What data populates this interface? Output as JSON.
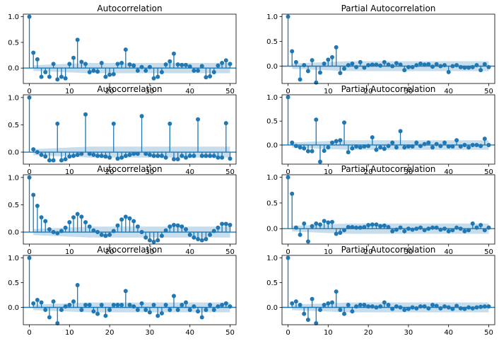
{
  "chart_data": [
    {
      "type": "stem",
      "title": "Autocorrelation",
      "xlim": [
        -1.5,
        51.5
      ],
      "ylim": [
        -0.3,
        1.05
      ],
      "xticks": [
        0,
        10,
        20,
        30,
        40,
        50
      ],
      "yticks": [
        "0.0",
        "0.5",
        "1.0"
      ],
      "confband": true,
      "values": [
        1.0,
        0.3,
        0.17,
        -0.17,
        -0.08,
        -0.17,
        0.08,
        -0.22,
        -0.17,
        -0.2,
        0.08,
        0.2,
        0.55,
        0.12,
        0.08,
        -0.08,
        -0.05,
        -0.07,
        0.1,
        -0.17,
        -0.13,
        -0.12,
        0.08,
        0.1,
        0.36,
        0.07,
        0.05,
        -0.05,
        0.02,
        -0.05,
        0.02,
        -0.2,
        -0.17,
        -0.08,
        0.07,
        0.13,
        0.28,
        0.07,
        0.06,
        0.06,
        0.03,
        -0.05,
        -0.05,
        0.04,
        -0.18,
        -0.16,
        -0.08,
        0.05,
        0.1,
        0.15,
        0.08
      ]
    },
    {
      "type": "stem",
      "title": "Partial Autocorrelation",
      "xlim": [
        -1.5,
        51.5
      ],
      "ylim": [
        -0.35,
        1.05
      ],
      "xticks": [
        0,
        10,
        20,
        30,
        40,
        50
      ],
      "yticks": [
        "0.0",
        "0.5",
        "1.0"
      ],
      "confband": true,
      "values": [
        1.0,
        0.3,
        0.08,
        -0.27,
        0.02,
        -0.1,
        0.12,
        -0.33,
        -0.13,
        0.05,
        0.13,
        0.18,
        0.38,
        -0.14,
        -0.05,
        0.02,
        0.05,
        -0.02,
        0.08,
        -0.03,
        0.02,
        0.03,
        0.03,
        0.01,
        0.08,
        0.03,
        0.0,
        0.06,
        0.03,
        -0.08,
        -0.02,
        -0.02,
        0.02,
        0.05,
        0.03,
        0.04,
        -0.01,
        0.04,
        0.0,
        0.02,
        -0.12,
        0.0,
        0.02,
        -0.02,
        -0.03,
        -0.03,
        -0.02,
        0.02,
        -0.08,
        0.04,
        -0.02
      ]
    },
    {
      "type": "stem",
      "title": "Autocorrelation",
      "xlim": [
        -1.5,
        51.5
      ],
      "ylim": [
        -0.22,
        1.05
      ],
      "xticks": [
        0,
        10,
        20,
        30,
        40,
        50
      ],
      "yticks": [
        "0.0",
        "0.5",
        "1.0"
      ],
      "confband": true,
      "values": [
        1.0,
        0.05,
        0.0,
        -0.05,
        -0.08,
        -0.15,
        -0.15,
        0.52,
        -0.15,
        -0.13,
        -0.08,
        -0.07,
        -0.05,
        -0.03,
        0.69,
        -0.03,
        -0.05,
        -0.07,
        -0.07,
        -0.08,
        -0.1,
        0.52,
        -0.12,
        -0.1,
        -0.07,
        -0.05,
        -0.03,
        -0.03,
        0.66,
        -0.03,
        -0.05,
        -0.07,
        -0.07,
        -0.07,
        -0.1,
        0.52,
        -0.13,
        -0.13,
        -0.07,
        -0.1,
        -0.07,
        -0.07,
        0.6,
        -0.07,
        -0.07,
        -0.07,
        -0.07,
        -0.1,
        -0.1,
        0.53,
        -0.12
      ]
    },
    {
      "type": "stem",
      "title": "Partial Autocorrelation",
      "xlim": [
        -1.5,
        51.5
      ],
      "ylim": [
        -0.4,
        1.05
      ],
      "xticks": [
        0,
        10,
        20,
        30,
        40,
        50
      ],
      "yticks": [
        "0.0",
        "0.5",
        "1.0"
      ],
      "confband": true,
      "values": [
        1.0,
        0.05,
        -0.02,
        -0.05,
        -0.07,
        -0.13,
        -0.13,
        0.53,
        -0.35,
        -0.12,
        -0.05,
        0.05,
        0.08,
        0.1,
        0.47,
        -0.15,
        -0.07,
        -0.03,
        -0.05,
        -0.03,
        -0.02,
        0.16,
        -0.1,
        -0.05,
        -0.08,
        -0.02,
        0.05,
        -0.05,
        0.29,
        -0.05,
        -0.03,
        -0.03,
        0.05,
        -0.02,
        0.02,
        0.05,
        -0.05,
        0.02,
        -0.02,
        0.05,
        -0.03,
        -0.03,
        0.1,
        -0.03,
        0.0,
        -0.05,
        0.0,
        0.0,
        -0.02,
        0.13,
        0.0
      ]
    },
    {
      "type": "stem",
      "title": "Autocorrelation",
      "xlim": [
        -1.5,
        51.5
      ],
      "ylim": [
        -0.22,
        1.05
      ],
      "xticks": [
        0,
        10,
        20,
        30,
        40,
        50
      ],
      "yticks": [
        "0.0",
        "0.5",
        "1.0"
      ],
      "confband": true,
      "values": [
        1.0,
        0.68,
        0.48,
        0.27,
        0.2,
        0.05,
        0.0,
        -0.02,
        0.02,
        0.08,
        0.18,
        0.27,
        0.33,
        0.28,
        0.18,
        0.1,
        0.03,
        0.0,
        -0.05,
        -0.07,
        -0.05,
        0.02,
        0.12,
        0.23,
        0.28,
        0.25,
        0.2,
        0.1,
        0.0,
        -0.1,
        -0.15,
        -0.18,
        -0.15,
        -0.07,
        0.03,
        0.1,
        0.13,
        0.12,
        0.1,
        0.05,
        -0.05,
        -0.1,
        -0.13,
        -0.15,
        -0.13,
        -0.05,
        0.02,
        0.08,
        0.15,
        0.15,
        0.13
      ]
    },
    {
      "type": "stem",
      "title": "Partial Autocorrelation",
      "xlim": [
        -1.5,
        51.5
      ],
      "ylim": [
        -0.3,
        1.05
      ],
      "xticks": [
        0,
        10,
        20,
        30,
        40,
        50
      ],
      "yticks": [
        "0.0",
        "0.5",
        "1.0"
      ],
      "confband": true,
      "values": [
        1.0,
        0.68,
        0.02,
        -0.12,
        0.1,
        -0.25,
        0.05,
        0.1,
        0.08,
        0.15,
        0.12,
        0.13,
        -0.1,
        -0.08,
        -0.03,
        0.03,
        0.03,
        0.02,
        0.02,
        0.03,
        0.07,
        0.08,
        0.08,
        0.05,
        0.06,
        0.03,
        -0.05,
        -0.02,
        0.02,
        -0.05,
        0.0,
        -0.02,
        0.0,
        0.02,
        -0.03,
        0.0,
        0.02,
        0.02,
        -0.02,
        0.0,
        -0.05,
        -0.03,
        0.02,
        0.0,
        -0.05,
        -0.03,
        0.1,
        0.02,
        0.07,
        -0.03,
        0.02
      ]
    },
    {
      "type": "stem",
      "title": "Autocorrelation",
      "xlim": [
        -1.5,
        51.5
      ],
      "ylim": [
        -0.35,
        1.05
      ],
      "xticks": [
        0,
        10,
        20,
        30,
        40,
        50
      ],
      "yticks": [
        "0.0",
        "0.5",
        "1.0"
      ],
      "confband": true,
      "values": [
        1.0,
        0.08,
        0.15,
        0.1,
        -0.05,
        -0.2,
        0.12,
        -0.32,
        -0.05,
        0.02,
        0.05,
        0.12,
        0.45,
        -0.05,
        0.05,
        0.05,
        -0.08,
        -0.13,
        0.05,
        -0.17,
        -0.05,
        0.05,
        0.05,
        0.05,
        0.33,
        0.05,
        0.02,
        -0.05,
        0.08,
        -0.05,
        -0.1,
        0.05,
        -0.17,
        -0.12,
        0.05,
        -0.05,
        0.23,
        -0.05,
        0.05,
        0.1,
        -0.05,
        0.02,
        -0.08,
        -0.2,
        -0.05,
        0.05,
        -0.05,
        0.02,
        0.05,
        0.08,
        0.02
      ]
    },
    {
      "type": "stem",
      "title": "Partial Autocorrelation",
      "xlim": [
        -1.5,
        51.5
      ],
      "ylim": [
        -0.35,
        1.05
      ],
      "xticks": [
        0,
        10,
        20,
        30,
        40,
        50
      ],
      "yticks": [
        "0.0",
        "0.5",
        "1.0"
      ],
      "confband": true,
      "values": [
        1.0,
        0.08,
        0.12,
        0.05,
        -0.13,
        -0.25,
        0.17,
        -0.32,
        -0.05,
        0.05,
        0.08,
        0.1,
        0.32,
        -0.05,
        -0.13,
        0.05,
        -0.08,
        0.02,
        0.05,
        0.05,
        0.02,
        0.02,
        0.0,
        0.02,
        0.1,
        0.05,
        -0.03,
        0.02,
        0.0,
        -0.05,
        -0.03,
        0.0,
        -0.02,
        0.02,
        0.02,
        -0.02,
        0.05,
        0.03,
        -0.02,
        0.02,
        0.0,
        -0.03,
        0.03,
        -0.02,
        -0.03,
        0.0,
        -0.02,
        0.0,
        0.01,
        0.02,
        0.02
      ]
    }
  ]
}
